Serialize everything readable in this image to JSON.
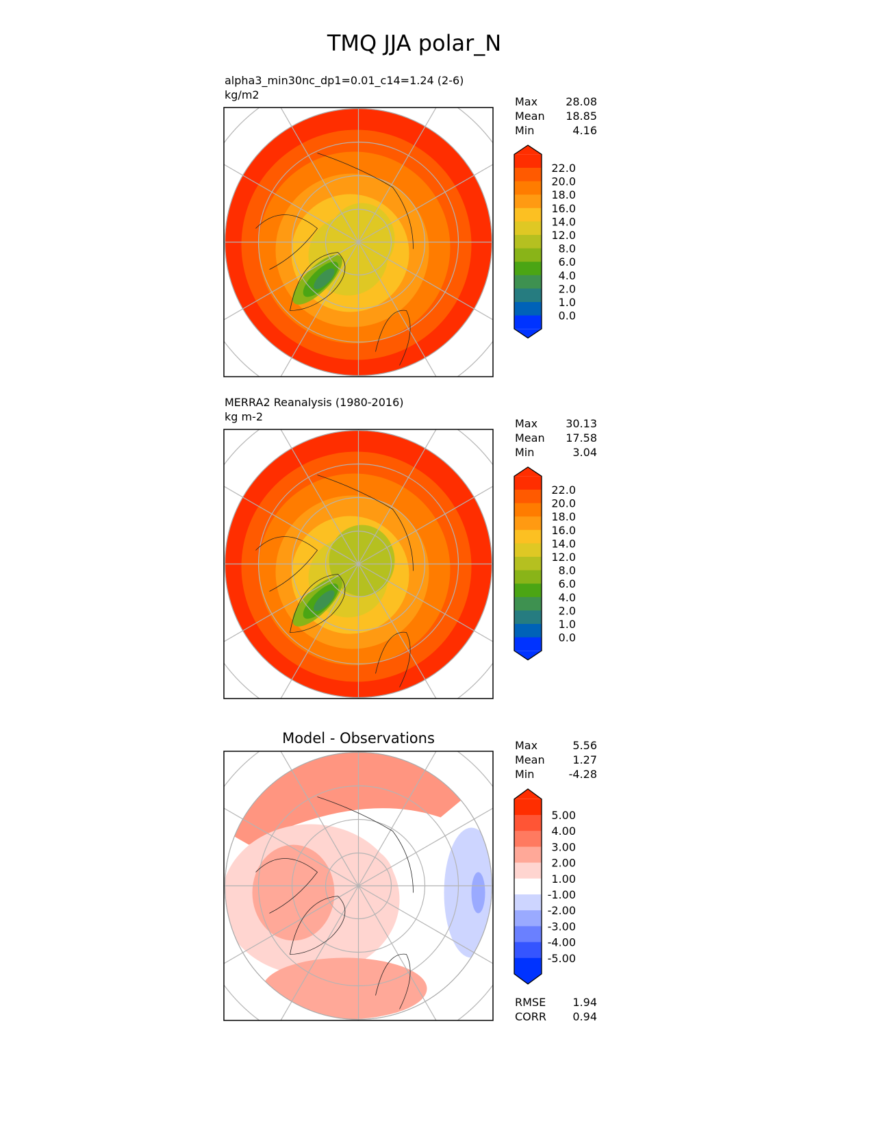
{
  "figure_title": "TMQ JJA polar_N",
  "chart_data": [
    {
      "type": "heatmap",
      "projection": "north-polar-stereographic",
      "title_left": "alpha3_min30nc_dp1=0.01_c14=1.24 (2-6)",
      "units": "kg/m2",
      "title_center": "",
      "stats": [
        {
          "label": "Max",
          "value": "28.08"
        },
        {
          "label": "Mean",
          "value": "18.85"
        },
        {
          "label": "Min",
          "value": "4.16"
        }
      ],
      "levels": [
        "22.0",
        "20.0",
        "18.0",
        "16.0",
        "14.0",
        "12.0",
        "8.0",
        "6.0",
        "4.0",
        "2.0",
        "1.0",
        "0.0"
      ],
      "colors": [
        "#ff2e00",
        "#ff5a00",
        "#ff7c00",
        "#ff9a12",
        "#fcc022",
        "#dfc824",
        "#b5c020",
        "#89b418",
        "#4ba514",
        "#3e9150",
        "#267c80",
        "#0062b8",
        "#0033ff"
      ],
      "field": {
        "rings": [
          "#ff2e00",
          "#ff5a00",
          "#ff7c00",
          "#ff9a12",
          "#fcc022",
          "#dfc824"
        ],
        "center": "#dfc824",
        "greenland": [
          "#89b418",
          "#4ba514",
          "#3e9150"
        ]
      },
      "extra": []
    },
    {
      "type": "heatmap",
      "projection": "north-polar-stereographic",
      "title_left": "MERRA2 Reanalysis (1980-2016)",
      "units": "kg m-2",
      "title_center": "",
      "stats": [
        {
          "label": "Max",
          "value": "30.13"
        },
        {
          "label": "Mean",
          "value": "17.58"
        },
        {
          "label": "Min",
          "value": "3.04"
        }
      ],
      "levels": [
        "22.0",
        "20.0",
        "18.0",
        "16.0",
        "14.0",
        "12.0",
        "8.0",
        "6.0",
        "4.0",
        "2.0",
        "1.0",
        "0.0"
      ],
      "colors": [
        "#ff2e00",
        "#ff5a00",
        "#ff7c00",
        "#ff9a12",
        "#fcc022",
        "#dfc824",
        "#b5c020",
        "#89b418",
        "#4ba514",
        "#3e9150",
        "#267c80",
        "#0062b8",
        "#0033ff"
      ],
      "field": {
        "rings": [
          "#ff2e00",
          "#ff5a00",
          "#ff7c00",
          "#ff9a12",
          "#fcc022",
          "#dfc824"
        ],
        "center": "#b5c020",
        "greenland": [
          "#89b418",
          "#4ba514",
          "#3e9150"
        ]
      },
      "extra": []
    },
    {
      "type": "heatmap",
      "projection": "north-polar-stereographic",
      "title_left": "",
      "units": "",
      "title_center": "Model - Observations",
      "stats": [
        {
          "label": "Max",
          "value": "5.56"
        },
        {
          "label": "Mean",
          "value": "1.27"
        },
        {
          "label": "Min",
          "value": "-4.28"
        }
      ],
      "levels": [
        "5.00",
        "4.00",
        "3.00",
        "2.00",
        "1.00",
        "-1.00",
        "-2.00",
        "-3.00",
        "-4.00",
        "-5.00"
      ],
      "colors": [
        "#ff2e00",
        "#ff5535",
        "#ff7a60",
        "#ffa898",
        "#ffd5d0",
        "#ffffff",
        "#cdd5ff",
        "#9aaaff",
        "#6a80ff",
        "#3555ff",
        "#0033ff"
      ],
      "field": {
        "rings": [
          "#ffffff"
        ],
        "center": "#ffd5d0",
        "greenland": [
          "#ffa898"
        ]
      },
      "extra": [
        {
          "label": "RMSE",
          "value": "1.94"
        },
        {
          "label": "CORR",
          "value": "0.94"
        }
      ]
    }
  ]
}
